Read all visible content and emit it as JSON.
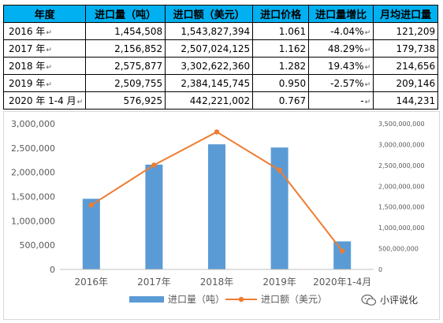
{
  "table": {
    "headers": [
      "年度",
      "进口量（吨）",
      "进口额（美元）",
      "进口价格",
      "进口量增比",
      "月均进口量"
    ],
    "rows": [
      [
        "2016 年",
        "1,454,508",
        "1,543,827,394",
        "1.061",
        "-4.04%",
        "121,209"
      ],
      [
        "2017 年",
        "2,156,852",
        "2,507,024,125",
        "1.162",
        "48.29%",
        "179,738"
      ],
      [
        "2018 年",
        "2,575,877",
        "3,302,622,360",
        "1.282",
        "19.43%",
        "214,656"
      ],
      [
        "2019 年",
        "2,509,755",
        "2,384,145,745",
        "0.950",
        "-2.57%",
        "209,146"
      ],
      [
        "2020 年 1-4 月",
        "576,925",
        "442,221,002",
        "0.767",
        "-",
        "144,231"
      ]
    ],
    "colors": {
      "header_bg": "#00b0f0"
    }
  },
  "chart_data": {
    "type": "bar",
    "categories": [
      "2016年",
      "2017年",
      "2018年",
      "2019年",
      "2020年1-4月"
    ],
    "series": [
      {
        "name": "进口量（吨）",
        "type": "bar",
        "axis": "left",
        "color": "#5b9bd5",
        "values": [
          1454508,
          2156852,
          2575877,
          2509755,
          576925
        ]
      },
      {
        "name": "进口额（美元）",
        "type": "line",
        "axis": "right",
        "color": "#ed7d31",
        "values": [
          1543827394,
          2507024125,
          3302622360,
          2384145745,
          442221002
        ]
      }
    ],
    "y_left": {
      "min": 0,
      "max": 3000000,
      "step": 500000,
      "ticks": [
        "0",
        "500,000",
        "1,000,000",
        "1,500,000",
        "2,000,000",
        "2,500,000",
        "3,000,000"
      ]
    },
    "y_right": {
      "min": 0,
      "max": 3500000000,
      "step": 500000000,
      "ticks": [
        "0",
        "500,000,000",
        "1,000,000,000",
        "1,500,000,000",
        "2,000,000,000",
        "2,500,000,000",
        "3,000,000,000",
        "3,500,000,000"
      ]
    },
    "legend_position": "bottom",
    "grid": false
  },
  "watermark": {
    "text": "小评说化",
    "icon": "wechat-icon"
  }
}
